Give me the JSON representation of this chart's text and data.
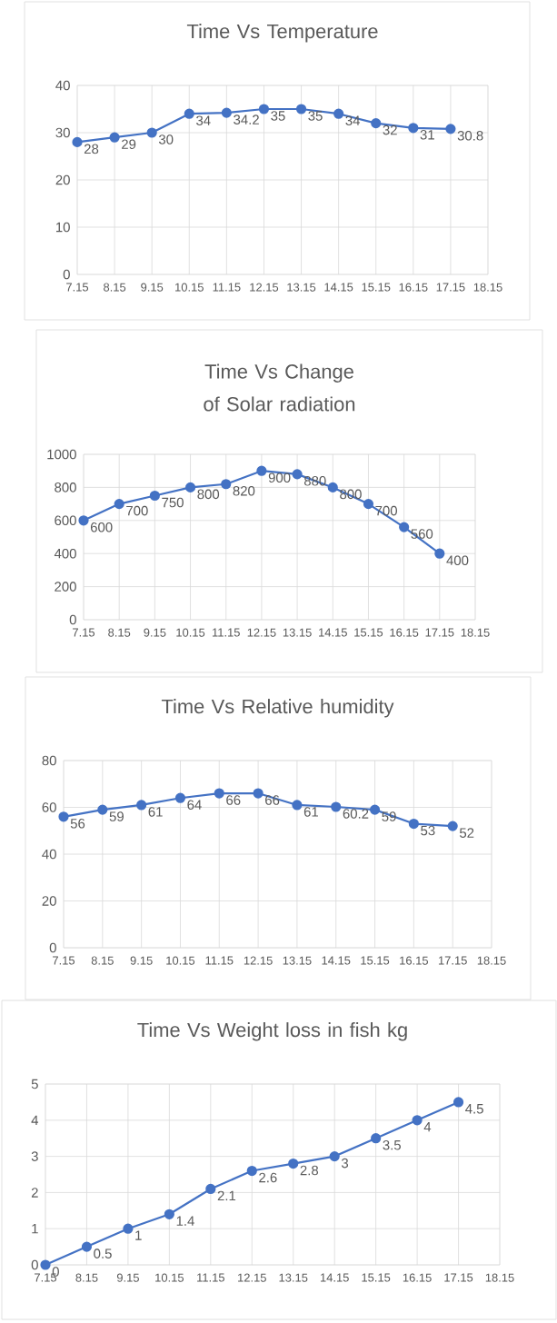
{
  "chart_data": [
    {
      "type": "line",
      "title": "Time Vs Temperature",
      "categories": [
        "7.15",
        "8.15",
        "9.15",
        "10.15",
        "11.15",
        "12.15",
        "13.15",
        "14.15",
        "15.15",
        "16.15",
        "17.15",
        "18.15"
      ],
      "values": [
        28,
        29,
        30,
        34,
        34.2,
        35,
        35,
        34,
        32,
        31,
        30.8,
        null
      ],
      "color": "#4472c4",
      "ylim": [
        0,
        40
      ],
      "yticks": [
        0,
        10,
        20,
        30,
        40
      ],
      "grid": true,
      "marker": "circle",
      "data_labels": true
    },
    {
      "type": "line",
      "title": "Time Vs Change of Solar radiation",
      "categories": [
        "7.15",
        "8.15",
        "9.15",
        "10.15",
        "11.15",
        "12.15",
        "13.15",
        "14.15",
        "15.15",
        "16.15",
        "17.15",
        "18.15"
      ],
      "values": [
        600,
        700,
        750,
        800,
        820,
        900,
        880,
        800,
        700,
        560,
        400,
        null
      ],
      "color": "#4472c4",
      "ylim": [
        0,
        1000
      ],
      "yticks": [
        0,
        200,
        400,
        600,
        800,
        1000
      ],
      "grid": true,
      "marker": "circle",
      "data_labels": true
    },
    {
      "type": "line",
      "title": "Time   Vs Relative humidity",
      "categories": [
        "7.15",
        "8.15",
        "9.15",
        "10.15",
        "11.15",
        "12.15",
        "13.15",
        "14.15",
        "15.15",
        "16.15",
        "17.15",
        "18.15"
      ],
      "values": [
        56,
        59,
        61,
        64,
        66,
        66,
        61,
        60.2,
        59,
        53,
        52,
        null
      ],
      "color": "#4472c4",
      "ylim": [
        0,
        80
      ],
      "yticks": [
        0,
        20,
        40,
        60,
        80
      ],
      "grid": true,
      "marker": "circle",
      "data_labels": true
    },
    {
      "type": "line",
      "title": "Time Vs Weight loss in fish kg",
      "categories": [
        "7.15",
        "8.15",
        "9.15",
        "10.15",
        "11.15",
        "12.15",
        "13.15",
        "14.15",
        "15.15",
        "16.15",
        "17.15",
        "18.15"
      ],
      "values": [
        0,
        0.5,
        1,
        1.4,
        2.1,
        2.6,
        2.8,
        3,
        3.5,
        4,
        4.5,
        null
      ],
      "color": "#4472c4",
      "ylim": [
        0,
        5
      ],
      "yticks": [
        0,
        1,
        2,
        3,
        4,
        5
      ],
      "grid": true,
      "marker": "circle",
      "data_labels": true
    }
  ]
}
